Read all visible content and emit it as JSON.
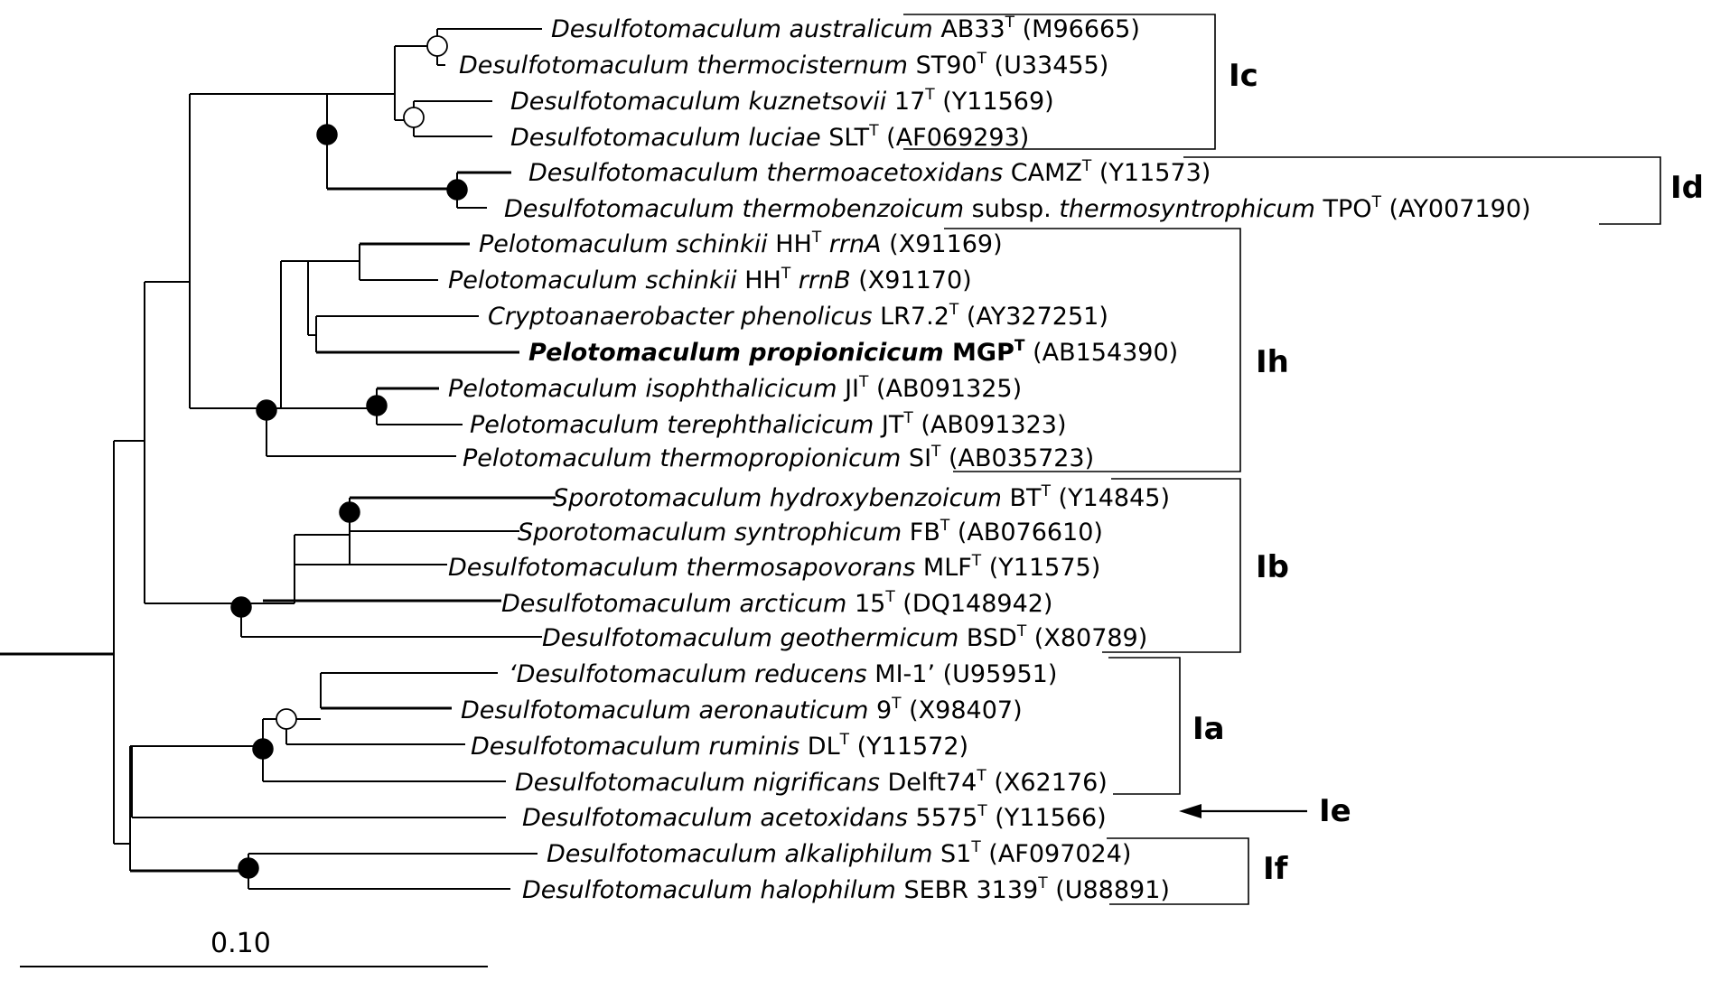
{
  "taxa": [
    {
      "id": "t1",
      "segs": [
        {
          "t": "Desulfotomaculum australicum",
          "s": "it"
        },
        {
          "t": " AB33"
        },
        {
          "t": "T",
          "s": "sup"
        },
        {
          "t": " (M96665)"
        }
      ]
    },
    {
      "id": "t2",
      "segs": [
        {
          "t": "Desulfotomaculum thermocisternum",
          "s": "it"
        },
        {
          "t": " ST90"
        },
        {
          "t": "T",
          "s": "sup"
        },
        {
          "t": " (U33455)"
        }
      ]
    },
    {
      "id": "t3",
      "segs": [
        {
          "t": "Desulfotomaculum kuznetsovii",
          "s": "it"
        },
        {
          "t": " 17"
        },
        {
          "t": "T",
          "s": "sup"
        },
        {
          "t": " (Y11569)"
        }
      ]
    },
    {
      "id": "t4",
      "segs": [
        {
          "t": "Desulfotomaculum luciae",
          "s": "it"
        },
        {
          "t": " SLT"
        },
        {
          "t": "T",
          "s": "sup"
        },
        {
          "t": " (AF069293)"
        }
      ]
    },
    {
      "id": "t5",
      "segs": [
        {
          "t": "Desulfotomaculum thermoacetoxidans",
          "s": "it"
        },
        {
          "t": " CAMZ"
        },
        {
          "t": "T",
          "s": "sup"
        },
        {
          "t": " (Y11573)"
        }
      ]
    },
    {
      "id": "t6",
      "segs": [
        {
          "t": "Desulfotomaculum thermobenzoicum",
          "s": "it"
        },
        {
          "t": " subsp. "
        },
        {
          "t": "thermosyntrophicum",
          "s": "it"
        },
        {
          "t": " TPO"
        },
        {
          "t": "T",
          "s": "sup"
        },
        {
          "t": " (AY007190)"
        }
      ]
    },
    {
      "id": "t7",
      "segs": [
        {
          "t": "Pelotomaculum schinkii",
          "s": "it"
        },
        {
          "t": " HH"
        },
        {
          "t": "T",
          "s": "sup"
        },
        {
          "t": " "
        },
        {
          "t": "rrnA",
          "s": "it"
        },
        {
          "t": " (X91169)"
        }
      ]
    },
    {
      "id": "t8",
      "segs": [
        {
          "t": "Pelotomaculum schinkii",
          "s": "it"
        },
        {
          "t": " HH"
        },
        {
          "t": "T",
          "s": "sup"
        },
        {
          "t": " "
        },
        {
          "t": "rrnB",
          "s": "it"
        },
        {
          "t": " (X91170)"
        }
      ]
    },
    {
      "id": "t9",
      "segs": [
        {
          "t": "Cryptoanaerobacter phenolicus",
          "s": "it"
        },
        {
          "t": " LR7.2"
        },
        {
          "t": "T",
          "s": "sup"
        },
        {
          "t": " (AY327251)"
        }
      ]
    },
    {
      "id": "t10",
      "segs": [
        {
          "t": "Pelotomaculum propionicicum",
          "s": "bi"
        },
        {
          "t": " MGP",
          "s": "bd"
        },
        {
          "t": "T",
          "s": "supb"
        },
        {
          "t": " (AB154390)"
        }
      ]
    },
    {
      "id": "t11",
      "segs": [
        {
          "t": "Pelotomaculum isophthalicicum",
          "s": "it"
        },
        {
          "t": " JI"
        },
        {
          "t": "T",
          "s": "sup"
        },
        {
          "t": " (AB091325)"
        }
      ]
    },
    {
      "id": "t12",
      "segs": [
        {
          "t": "Pelotomaculum terephthalicicum",
          "s": "it"
        },
        {
          "t": " JT"
        },
        {
          "t": "T",
          "s": "sup"
        },
        {
          "t": " (AB091323)"
        }
      ]
    },
    {
      "id": "t13",
      "segs": [
        {
          "t": "Pelotomaculum thermopropionicum",
          "s": "it"
        },
        {
          "t": " SI"
        },
        {
          "t": "T",
          "s": "sup"
        },
        {
          "t": " (AB035723)"
        }
      ]
    },
    {
      "id": "t14",
      "segs": [
        {
          "t": "Sporotomaculum hydroxybenzoicum",
          "s": "it"
        },
        {
          "t": " BT"
        },
        {
          "t": "T",
          "s": "sup"
        },
        {
          "t": " (Y14845)"
        }
      ]
    },
    {
      "id": "t15",
      "segs": [
        {
          "t": "Sporotomaculum syntrophicum",
          "s": "it"
        },
        {
          "t": " FB"
        },
        {
          "t": "T",
          "s": "sup"
        },
        {
          "t": " (AB076610)"
        }
      ]
    },
    {
      "id": "t16",
      "segs": [
        {
          "t": "Desulfotomaculum thermosapovorans",
          "s": "it"
        },
        {
          "t": " MLF"
        },
        {
          "t": "T",
          "s": "sup"
        },
        {
          "t": " (Y11575)"
        }
      ]
    },
    {
      "id": "t17",
      "segs": [
        {
          "t": "Desulfotomaculum arcticum",
          "s": "it"
        },
        {
          "t": " 15"
        },
        {
          "t": "T",
          "s": "sup"
        },
        {
          "t": " (DQ148942)"
        }
      ]
    },
    {
      "id": "t18",
      "segs": [
        {
          "t": "Desulfotomaculum geothermicum",
          "s": "it"
        },
        {
          "t": " BSD"
        },
        {
          "t": "T",
          "s": "sup"
        },
        {
          "t": " (X80789)"
        }
      ]
    },
    {
      "id": "t19",
      "segs": [
        {
          "t": "‘Desulfotomaculum reducens",
          "s": "it"
        },
        {
          "t": " MI-1’ (U95951)"
        }
      ]
    },
    {
      "id": "t20",
      "segs": [
        {
          "t": "Desulfotomaculum aeronauticum",
          "s": "it"
        },
        {
          "t": " 9"
        },
        {
          "t": "T",
          "s": "sup"
        },
        {
          "t": " (X98407)"
        }
      ]
    },
    {
      "id": "t21",
      "segs": [
        {
          "t": "Desulfotomaculum ruminis",
          "s": "it"
        },
        {
          "t": " DL"
        },
        {
          "t": "T",
          "s": "sup"
        },
        {
          "t": " (Y11572)"
        }
      ]
    },
    {
      "id": "t22",
      "segs": [
        {
          "t": "Desulfotomaculum nigrificans",
          "s": "it"
        },
        {
          "t": " Delft74"
        },
        {
          "t": "T",
          "s": "sup"
        },
        {
          "t": " (X62176)"
        }
      ]
    },
    {
      "id": "t23",
      "segs": [
        {
          "t": "Desulfotomaculum acetoxidans",
          "s": "it"
        },
        {
          "t": " 5575"
        },
        {
          "t": "T",
          "s": "sup"
        },
        {
          "t": " (Y11566)"
        }
      ]
    },
    {
      "id": "t24",
      "segs": [
        {
          "t": "Desulfotomaculum alkaliphilum",
          "s": "it"
        },
        {
          "t": " S1"
        },
        {
          "t": "T",
          "s": "sup"
        },
        {
          "t": " (AF097024)"
        }
      ]
    },
    {
      "id": "t25",
      "segs": [
        {
          "t": "Desulfotomaculum halophilum",
          "s": "it"
        },
        {
          "t": " SEBR 3139"
        },
        {
          "t": "T",
          "s": "sup"
        },
        {
          "t": " (U88891)"
        }
      ]
    }
  ],
  "clusters": [
    {
      "label": "Ic",
      "members": [
        "t1",
        "t2",
        "t3",
        "t4"
      ]
    },
    {
      "label": "Id",
      "members": [
        "t5",
        "t6"
      ]
    },
    {
      "label": "Ih",
      "members": [
        "t7",
        "t8",
        "t9",
        "t10",
        "t11",
        "t12",
        "t13"
      ]
    },
    {
      "label": "Ib",
      "members": [
        "t14",
        "t15",
        "t16",
        "t17",
        "t18"
      ]
    },
    {
      "label": "Ia",
      "members": [
        "t19",
        "t20",
        "t21",
        "t22"
      ]
    },
    {
      "label": "Ie",
      "members": [
        "t23"
      ]
    },
    {
      "label": "If",
      "members": [
        "t24",
        "t25"
      ]
    }
  ],
  "scale_bar": {
    "label": "0.10"
  },
  "legend_markers": {
    "filled": "filled-node",
    "open": "open-node"
  }
}
